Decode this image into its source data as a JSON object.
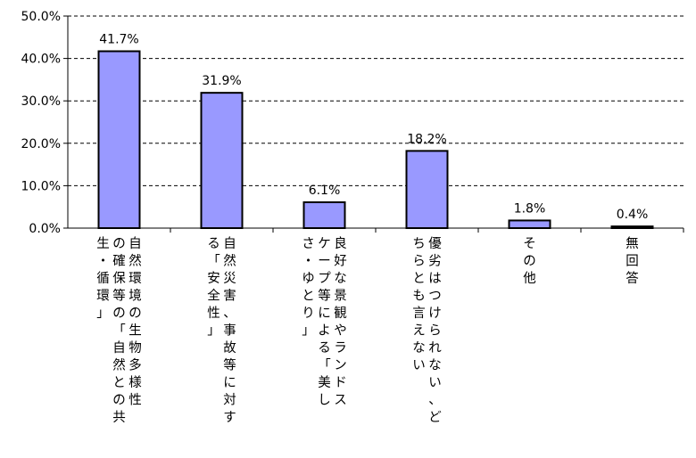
{
  "chart_data": {
    "type": "bar",
    "title": "",
    "xlabel": "",
    "ylabel": "",
    "ylim": [
      0,
      50
    ],
    "yticks": [
      "0.0%",
      "10.0%",
      "20.0%",
      "30.0%",
      "40.0%",
      "50.0%"
    ],
    "categories": [
      "自然環境の生物多様性の確保等の「自然との共生・循環」",
      "自然災害、事故等に対する「安全性」",
      "良好な景観やランドスケープ等による「美しさ・ゆとり」",
      "優劣はつけられない、どちらとも言えない",
      "その他",
      "無回答"
    ],
    "category_label_lines": [
      [
        "自然環境の生物多様性",
        "の確保等の「自然との共",
        "生・循環」"
      ],
      [
        "自然災害、事故等に対す",
        "る「安全性」"
      ],
      [
        "良好な景観やランドス",
        "ケープ等による「美し",
        "さ・ゆとり」"
      ],
      [
        "優劣はつけられない、ど",
        "ちらとも言えない"
      ],
      [
        "その他"
      ],
      [
        "無回答"
      ]
    ],
    "values": [
      41.7,
      31.9,
      6.1,
      18.2,
      1.8,
      0.4
    ],
    "data_labels": [
      "41.7%",
      "31.9%",
      "6.1%",
      "18.2%",
      "1.8%",
      "0.4%"
    ],
    "grid": true,
    "legend": "none",
    "colors": {
      "bar_fill": "#9999FF",
      "bar_stroke": "#000000",
      "grid": "#000000"
    }
  }
}
